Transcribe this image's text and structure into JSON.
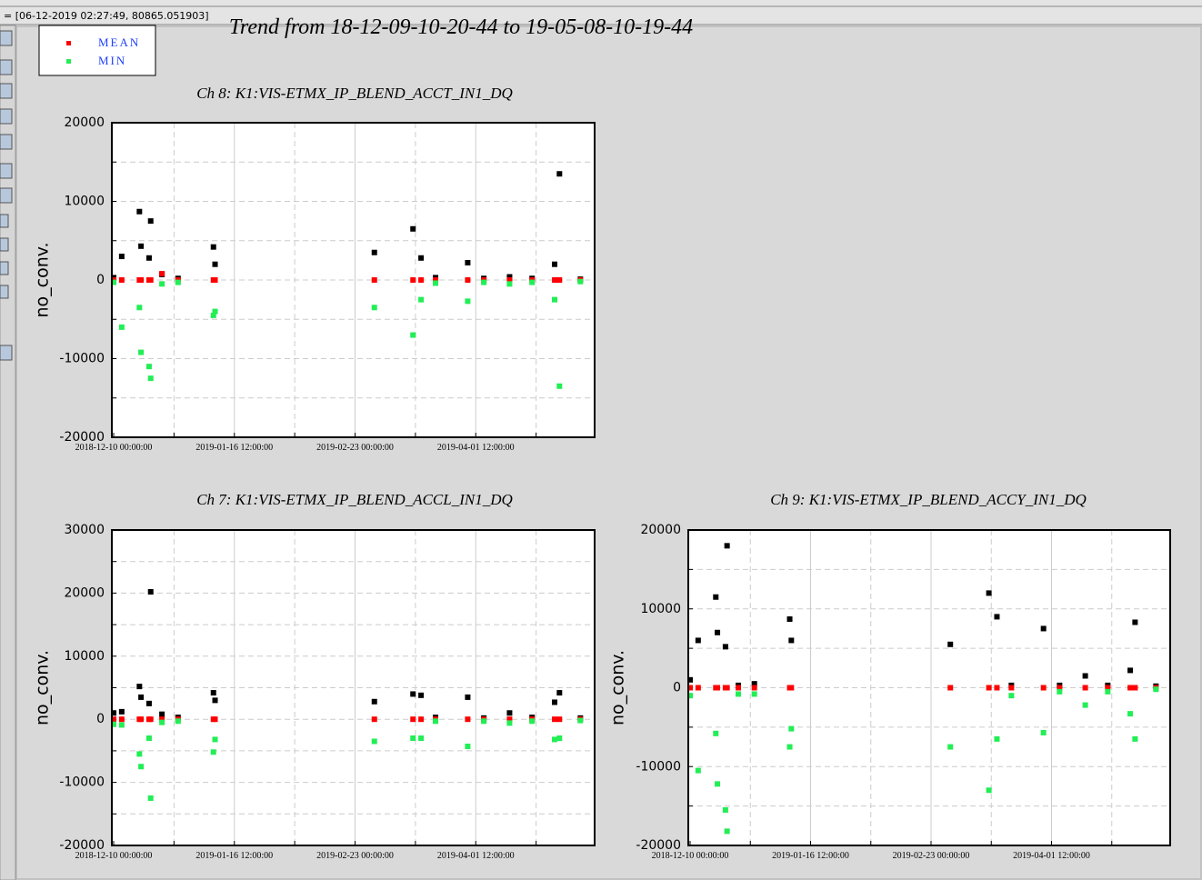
{
  "status": "= [06-12-2019 02:27:49, 80865.051903]",
  "trend_title": "Trend from 18-12-09-10-20-44 to 19-05-08-10-19-44",
  "chart_data": [
    {
      "type": "scatter",
      "title": "Ch 8: K1:VIS-ETMX_IP_BLEND_ACCT_IN1_DQ",
      "y_label": "no_conv.",
      "x": [
        "2018-12-10 00:00:00",
        "2018-12-12 12:00:00",
        "2018-12-18 00:00:00",
        "2018-12-18 12:00:00",
        "2018-12-21 00:00:00",
        "2018-12-21 12:00:00",
        "2018-12-25 00:00:00",
        "2018-12-30 00:00:00",
        "2019-01-10 00:00:00",
        "2019-01-10 12:00:00",
        "2019-01-19 00:00:00",
        "2019-01-29 00:00:00",
        "2019-02-08 00:00:00",
        "2019-02-18 00:00:00",
        "2019-03-01 00:00:00",
        "2019-03-13 00:00:00",
        "2019-03-15 12:00:00",
        "2019-03-20 00:00:00",
        "2019-03-30 00:00:00",
        "2019-04-04 00:00:00",
        "2019-04-12 00:00:00",
        "2019-04-19 00:00:00",
        "2019-04-26 00:00:00",
        "2019-04-27 12:00:00",
        "2019-05-04 00:00:00"
      ],
      "xlim": [
        "2018-12-09 10:20:44",
        "2019-05-08 10:19:44"
      ],
      "xticks": [
        "2018-12-10 00:00:00",
        {
          "value": "2018-12-28 18:00:00",
          "label": null
        },
        "2019-01-16 12:00:00",
        {
          "value": "2019-02-04 06:00:00",
          "label": null
        },
        "2019-02-23 00:00:00",
        {
          "value": "2019-03-13 18:00:00",
          "label": null
        },
        "2019-04-01 12:00:00",
        {
          "value": "2019-04-20 06:00:00",
          "label": null
        }
      ],
      "ylim": [
        -20000,
        20000
      ],
      "yticks": [
        -20000,
        {
          "value": -15000,
          "label": null
        },
        -10000,
        {
          "value": -5000,
          "label": null
        },
        0,
        {
          "value": 5000,
          "label": null
        },
        10000,
        {
          "value": 15000,
          "label": null
        },
        20000
      ],
      "grid": true,
      "series": [
        {
          "color": "#000000",
          "values": [
            300,
            3000,
            8700,
            4300,
            2800,
            7500,
            700,
            200,
            4200,
            2000,
            null,
            null,
            null,
            null,
            3500,
            6500,
            2800,
            300,
            2200,
            200,
            400,
            200,
            2000,
            13500,
            100
          ]
        },
        {
          "name": "MEAN",
          "color": "#ff0000",
          "values": [
            0,
            0,
            0,
            0,
            0,
            0,
            800,
            0,
            0,
            0,
            null,
            null,
            null,
            null,
            0,
            0,
            0,
            0,
            0,
            0,
            0,
            0,
            0,
            0,
            0
          ]
        },
        {
          "name": "MIN",
          "color": "#22ee55",
          "values": [
            -300,
            -6000,
            -3500,
            -9200,
            -11000,
            -12500,
            -500,
            -300,
            -4500,
            -4000,
            null,
            null,
            null,
            null,
            -3500,
            -7000,
            -2500,
            -400,
            -2700,
            -300,
            -500,
            -300,
            -2500,
            -13500,
            -200
          ]
        }
      ]
    },
    {
      "type": "scatter",
      "title": "Ch 7: K1:VIS-ETMX_IP_BLEND_ACCL_IN1_DQ",
      "y_label": "no_conv.",
      "x": [
        "2018-12-10 00:00:00",
        "2018-12-12 12:00:00",
        "2018-12-18 00:00:00",
        "2018-12-18 12:00:00",
        "2018-12-21 00:00:00",
        "2018-12-21 12:00:00",
        "2018-12-25 00:00:00",
        "2018-12-30 00:00:00",
        "2019-01-10 00:00:00",
        "2019-01-10 12:00:00",
        "2019-01-19 00:00:00",
        "2019-01-29 00:00:00",
        "2019-02-08 00:00:00",
        "2019-02-18 00:00:00",
        "2019-03-01 00:00:00",
        "2019-03-13 00:00:00",
        "2019-03-15 12:00:00",
        "2019-03-20 00:00:00",
        "2019-03-30 00:00:00",
        "2019-04-04 00:00:00",
        "2019-04-12 00:00:00",
        "2019-04-19 00:00:00",
        "2019-04-26 00:00:00",
        "2019-04-27 12:00:00",
        "2019-05-04 00:00:00"
      ],
      "xlim": [
        "2018-12-09 10:20:44",
        "2019-05-08 10:19:44"
      ],
      "xticks": [
        "2018-12-10 00:00:00",
        {
          "value": "2018-12-28 18:00:00",
          "label": null
        },
        "2019-01-16 12:00:00",
        {
          "value": "2019-02-04 06:00:00",
          "label": null
        },
        "2019-02-23 00:00:00",
        {
          "value": "2019-03-13 18:00:00",
          "label": null
        },
        "2019-04-01 12:00:00",
        {
          "value": "2019-04-20 06:00:00",
          "label": null
        }
      ],
      "ylim": [
        -20000,
        30000
      ],
      "yticks": [
        -20000,
        {
          "value": -15000,
          "label": null
        },
        -10000,
        {
          "value": -5000,
          "label": null
        },
        0,
        {
          "value": 5000,
          "label": null
        },
        10000,
        {
          "value": 15000,
          "label": null
        },
        20000,
        {
          "value": 25000,
          "label": null
        },
        30000
      ],
      "grid": true,
      "series": [
        {
          "color": "#000000",
          "values": [
            1000,
            1200,
            5200,
            3500,
            2500,
            20200,
            800,
            300,
            4200,
            3000,
            null,
            null,
            null,
            null,
            2800,
            4000,
            3800,
            300,
            3500,
            200,
            1000,
            300,
            2700,
            4200,
            200
          ]
        },
        {
          "name": "MEAN",
          "color": "#ff0000",
          "values": [
            0,
            0,
            0,
            0,
            0,
            0,
            0,
            0,
            0,
            0,
            null,
            null,
            null,
            null,
            0,
            0,
            0,
            0,
            0,
            0,
            0,
            0,
            0,
            0,
            0
          ]
        },
        {
          "name": "MIN",
          "color": "#22ee55",
          "values": [
            -800,
            -900,
            -5500,
            -7500,
            -3000,
            -12500,
            -500,
            -300,
            -5200,
            -3200,
            null,
            null,
            null,
            null,
            -3500,
            -3000,
            -3000,
            -300,
            -4300,
            -300,
            -600,
            -300,
            -3200,
            -3000,
            -200
          ]
        }
      ]
    },
    {
      "type": "scatter",
      "title": "Ch 9: K1:VIS-ETMX_IP_BLEND_ACCY_IN1_DQ",
      "y_label": "no_conv.",
      "x": [
        "2018-12-10 00:00:00",
        "2018-12-12 12:00:00",
        "2018-12-18 00:00:00",
        "2018-12-18 12:00:00",
        "2018-12-21 00:00:00",
        "2018-12-21 12:00:00",
        "2018-12-25 00:00:00",
        "2018-12-30 00:00:00",
        "2019-01-10 00:00:00",
        "2019-01-10 12:00:00",
        "2019-01-19 00:00:00",
        "2019-01-29 00:00:00",
        "2019-02-08 00:00:00",
        "2019-02-18 00:00:00",
        "2019-03-01 00:00:00",
        "2019-03-13 00:00:00",
        "2019-03-15 12:00:00",
        "2019-03-20 00:00:00",
        "2019-03-30 00:00:00",
        "2019-04-04 00:00:00",
        "2019-04-12 00:00:00",
        "2019-04-19 00:00:00",
        "2019-04-26 00:00:00",
        "2019-04-27 12:00:00",
        "2019-05-04 00:00:00"
      ],
      "xlim": [
        "2018-12-09 10:20:44",
        "2019-05-08 10:19:44"
      ],
      "xticks": [
        "2018-12-10 00:00:00",
        {
          "value": "2018-12-28 18:00:00",
          "label": null
        },
        "2019-01-16 12:00:00",
        {
          "value": "2019-02-04 06:00:00",
          "label": null
        },
        "2019-02-23 00:00:00",
        {
          "value": "2019-03-13 18:00:00",
          "label": null
        },
        "2019-04-01 12:00:00",
        {
          "value": "2019-04-20 06:00:00",
          "label": null
        }
      ],
      "ylim": [
        -20000,
        20000
      ],
      "yticks": [
        -20000,
        {
          "value": -15000,
          "label": null
        },
        -10000,
        {
          "value": -5000,
          "label": null
        },
        0,
        {
          "value": 5000,
          "label": null
        },
        10000,
        {
          "value": 15000,
          "label": null
        },
        20000
      ],
      "grid": true,
      "series": [
        {
          "color": "#000000",
          "values": [
            1000,
            6000,
            11500,
            7000,
            5200,
            18000,
            300,
            500,
            8700,
            6000,
            null,
            null,
            null,
            null,
            5500,
            12000,
            9000,
            300,
            7500,
            300,
            1500,
            300,
            2200,
            8300,
            200
          ]
        },
        {
          "name": "MEAN",
          "color": "#ff0000",
          "values": [
            0,
            0,
            0,
            0,
            0,
            0,
            0,
            0,
            0,
            0,
            null,
            null,
            null,
            null,
            0,
            0,
            0,
            0,
            0,
            0,
            0,
            0,
            0,
            0,
            0
          ]
        },
        {
          "name": "MIN",
          "color": "#22ee55",
          "values": [
            -1000,
            -10500,
            -5800,
            -12200,
            -15500,
            -18200,
            -800,
            -800,
            -7500,
            -5200,
            null,
            null,
            null,
            null,
            -7500,
            -13000,
            -6500,
            -1000,
            -5700,
            -500,
            -2200,
            -500,
            -3300,
            -6500,
            -200
          ]
        }
      ]
    }
  ]
}
